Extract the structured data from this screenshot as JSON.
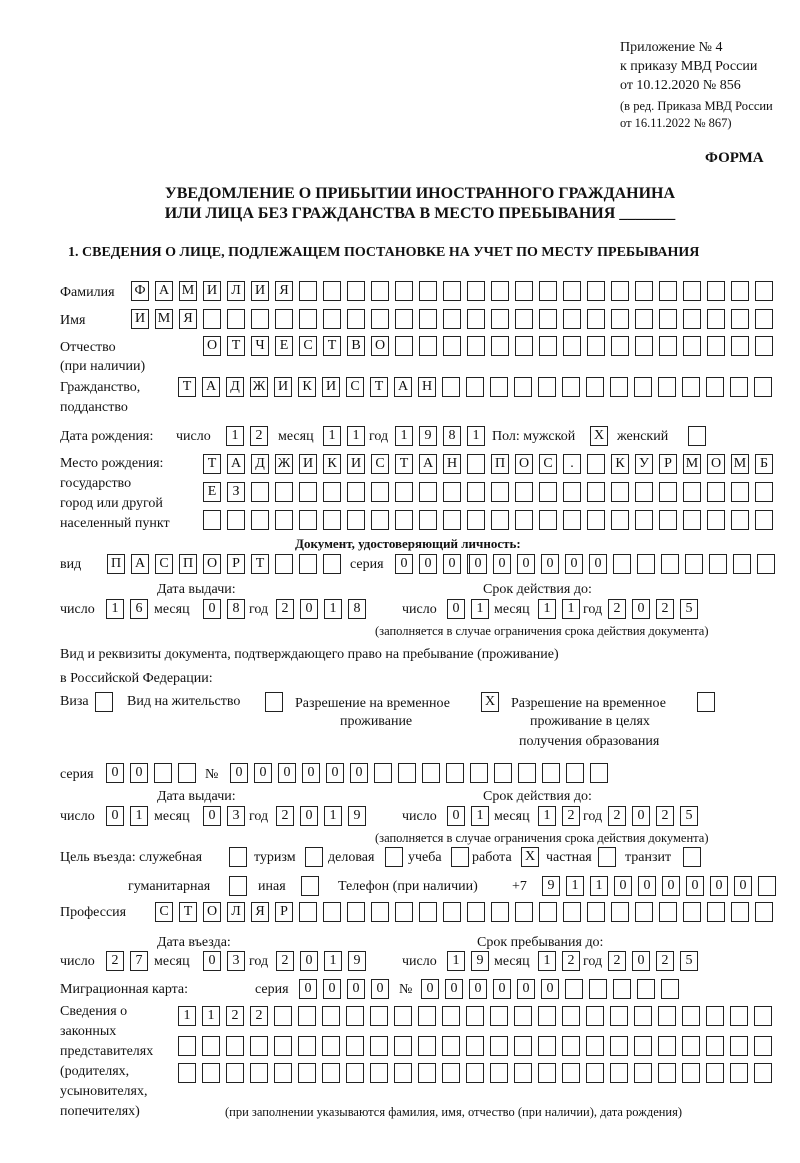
{
  "header": {
    "line1": "Приложение № 4",
    "line2": "к приказу МВД России",
    "line3": "от 10.12.2020 № 856",
    "line4": "(в ред. Приказа МВД России",
    "line5": "от 16.11.2022 № 867)",
    "forma": "ФОРМА"
  },
  "title": {
    "line1": "УВЕДОМЛЕНИЕ О ПРИБЫТИИ ИНОСТРАННОГО ГРАЖДАНИНА",
    "line2": "ИЛИ ЛИЦА БЕЗ ГРАЖДАНСТВА В МЕСТО ПРЕБЫВАНИЯ _______"
  },
  "section1": "1. СВЕДЕНИЯ О ЛИЦЕ, ПОДЛЕЖАЩЕМ ПОСТАНОВКЕ НА УЧЕТ ПО МЕСТУ ПРЕБЫВАНИЯ",
  "labels": {
    "surname": "Фамилия",
    "name": "Имя",
    "patronymic1": "Отчество",
    "patronymic2": "(при наличии)",
    "citizenship1": "Гражданство,",
    "citizenship2": "подданство",
    "birth_date": "Дата рождения:",
    "day": "число",
    "month": "месяц",
    "year": "год",
    "sex": "Пол: мужской",
    "female": "женский",
    "birthplace1": "Место рождения:",
    "birthplace2": "государство",
    "birthplace3": "город или другой",
    "birthplace4": "населенный пункт",
    "id_doc": "Документ, удостоверяющий личность:",
    "kind": "вид",
    "series": "серия",
    "number": "№",
    "issue_date": "Дата выдачи:",
    "valid_until": "Срок действия до:",
    "valid_note": "(заполняется в случае ограничения срока действия документа)",
    "stay_doc1": "Вид и реквизиты документа, подтверждающего право на пребывание (проживание)",
    "stay_doc2": "в Российской Федерации:",
    "visa": "Виза",
    "residence": "Вид на жительство",
    "rvp1": "Разрешение на временное",
    "rvp2": "проживание",
    "rvpe1": "Разрешение на временное",
    "rvpe2": "проживание в целях",
    "rvpe3": "получения образования",
    "purpose": "Цель въезда: служебная",
    "tourism": "туризм",
    "business": "деловая",
    "study": "учеба",
    "work": "работа",
    "private": "частная",
    "transit": "транзит",
    "humanitarian": "гуманитарная",
    "other": "иная",
    "phone": "Телефон (при наличии)",
    "phone_prefix": "+7",
    "profession": "Профессия",
    "entry_date": "Дата въезда:",
    "stay_until": "Срок пребывания до:",
    "migration_card": "Миграционная карта:",
    "reps1": "Сведения о",
    "reps2": "законных",
    "reps3": "представителях",
    "reps4": "(родителях,",
    "reps5": "усыновителях,",
    "reps6": "попечителях)",
    "reps_note": "(при заполнении указываются фамилия, имя, отчество (при наличии), дата рождения)"
  },
  "values": {
    "surname": "ФАМИЛИЯ",
    "name": "ИМЯ",
    "patronymic": "ОТЧЕСТВО",
    "citizenship": "ТАДЖИКИСТАН",
    "birth_day": "12",
    "birth_month": "11",
    "birth_year": "1981",
    "sex_male": "X",
    "sex_female": "",
    "birthplace1": "ТАДЖИКИСТАН ПОС. КУРМОМБ",
    "birthplace2": "ЕЗ",
    "birthplace3": "",
    "doc_kind": "ПАСПОРТ",
    "doc_series": "0000",
    "doc_number": "000000",
    "doc_issue_day": "16",
    "doc_issue_month": "08",
    "doc_issue_year": "2018",
    "doc_valid_day": "01",
    "doc_valid_month": "11",
    "doc_valid_year": "2025",
    "visa": "",
    "residence": "",
    "rvp": "X",
    "rvp_edu": "",
    "stay_series": "00",
    "stay_number": "000000",
    "stay_issue_day": "01",
    "stay_issue_month": "03",
    "stay_issue_year": "2019",
    "stay_valid_day": "01",
    "stay_valid_month": "12",
    "stay_valid_year": "2025",
    "purpose_service": "",
    "purpose_tourism": "",
    "purpose_business": "",
    "purpose_study": "",
    "purpose_work": "X",
    "purpose_private": "",
    "purpose_transit": "",
    "purpose_humanitarian": "",
    "purpose_other": "",
    "phone": "911000000",
    "profession": "СТОЛЯР",
    "entry_day": "27",
    "entry_month": "03",
    "entry_year": "2019",
    "stay_day": "19",
    "stay_month": "12",
    "stay_year": "2025",
    "mc_series": "0000",
    "mc_number": "000000",
    "reps1": "1122",
    "reps2": "",
    "reps3": ""
  }
}
